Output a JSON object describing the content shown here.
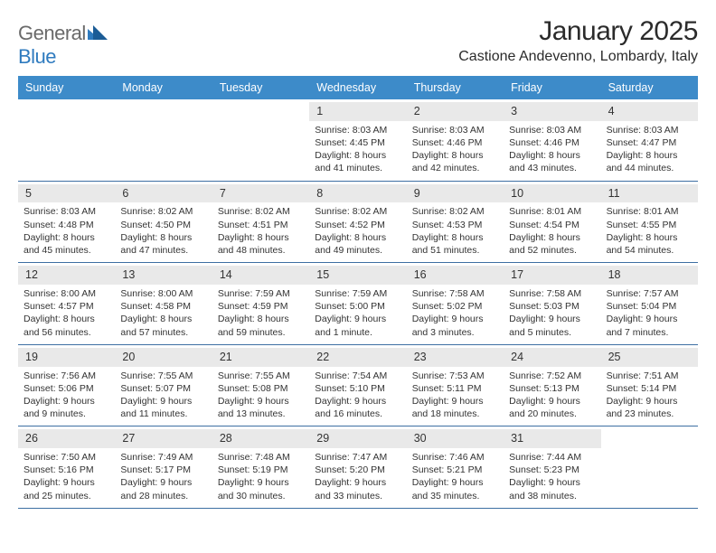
{
  "brand": {
    "name_a": "General",
    "name_b": "Blue"
  },
  "title": "January 2025",
  "location": "Castione Andevenno, Lombardy, Italy",
  "colors": {
    "header_bg": "#3d8bc9",
    "header_text": "#ffffff",
    "row_border": "#3d6fa3",
    "daynum_bg": "#e9e9e9",
    "body_text": "#333333",
    "logo_gray": "#6a6a6a",
    "logo_blue": "#2f7bbf",
    "page_bg": "#ffffff"
  },
  "typography": {
    "title_fontsize": 30,
    "location_fontsize": 16,
    "dow_fontsize": 12.5,
    "daynum_fontsize": 12.5,
    "body_fontsize": 10.5
  },
  "dow": [
    "Sunday",
    "Monday",
    "Tuesday",
    "Wednesday",
    "Thursday",
    "Friday",
    "Saturday"
  ],
  "weeks": [
    [
      {
        "n": "",
        "lines": [
          "",
          "",
          "",
          ""
        ]
      },
      {
        "n": "",
        "lines": [
          "",
          "",
          "",
          ""
        ]
      },
      {
        "n": "",
        "lines": [
          "",
          "",
          "",
          ""
        ]
      },
      {
        "n": "1",
        "lines": [
          "Sunrise: 8:03 AM",
          "Sunset: 4:45 PM",
          "Daylight: 8 hours",
          "and 41 minutes."
        ]
      },
      {
        "n": "2",
        "lines": [
          "Sunrise: 8:03 AM",
          "Sunset: 4:46 PM",
          "Daylight: 8 hours",
          "and 42 minutes."
        ]
      },
      {
        "n": "3",
        "lines": [
          "Sunrise: 8:03 AM",
          "Sunset: 4:46 PM",
          "Daylight: 8 hours",
          "and 43 minutes."
        ]
      },
      {
        "n": "4",
        "lines": [
          "Sunrise: 8:03 AM",
          "Sunset: 4:47 PM",
          "Daylight: 8 hours",
          "and 44 minutes."
        ]
      }
    ],
    [
      {
        "n": "5",
        "lines": [
          "Sunrise: 8:03 AM",
          "Sunset: 4:48 PM",
          "Daylight: 8 hours",
          "and 45 minutes."
        ]
      },
      {
        "n": "6",
        "lines": [
          "Sunrise: 8:02 AM",
          "Sunset: 4:50 PM",
          "Daylight: 8 hours",
          "and 47 minutes."
        ]
      },
      {
        "n": "7",
        "lines": [
          "Sunrise: 8:02 AM",
          "Sunset: 4:51 PM",
          "Daylight: 8 hours",
          "and 48 minutes."
        ]
      },
      {
        "n": "8",
        "lines": [
          "Sunrise: 8:02 AM",
          "Sunset: 4:52 PM",
          "Daylight: 8 hours",
          "and 49 minutes."
        ]
      },
      {
        "n": "9",
        "lines": [
          "Sunrise: 8:02 AM",
          "Sunset: 4:53 PM",
          "Daylight: 8 hours",
          "and 51 minutes."
        ]
      },
      {
        "n": "10",
        "lines": [
          "Sunrise: 8:01 AM",
          "Sunset: 4:54 PM",
          "Daylight: 8 hours",
          "and 52 minutes."
        ]
      },
      {
        "n": "11",
        "lines": [
          "Sunrise: 8:01 AM",
          "Sunset: 4:55 PM",
          "Daylight: 8 hours",
          "and 54 minutes."
        ]
      }
    ],
    [
      {
        "n": "12",
        "lines": [
          "Sunrise: 8:00 AM",
          "Sunset: 4:57 PM",
          "Daylight: 8 hours",
          "and 56 minutes."
        ]
      },
      {
        "n": "13",
        "lines": [
          "Sunrise: 8:00 AM",
          "Sunset: 4:58 PM",
          "Daylight: 8 hours",
          "and 57 minutes."
        ]
      },
      {
        "n": "14",
        "lines": [
          "Sunrise: 7:59 AM",
          "Sunset: 4:59 PM",
          "Daylight: 8 hours",
          "and 59 minutes."
        ]
      },
      {
        "n": "15",
        "lines": [
          "Sunrise: 7:59 AM",
          "Sunset: 5:00 PM",
          "Daylight: 9 hours",
          "and 1 minute."
        ]
      },
      {
        "n": "16",
        "lines": [
          "Sunrise: 7:58 AM",
          "Sunset: 5:02 PM",
          "Daylight: 9 hours",
          "and 3 minutes."
        ]
      },
      {
        "n": "17",
        "lines": [
          "Sunrise: 7:58 AM",
          "Sunset: 5:03 PM",
          "Daylight: 9 hours",
          "and 5 minutes."
        ]
      },
      {
        "n": "18",
        "lines": [
          "Sunrise: 7:57 AM",
          "Sunset: 5:04 PM",
          "Daylight: 9 hours",
          "and 7 minutes."
        ]
      }
    ],
    [
      {
        "n": "19",
        "lines": [
          "Sunrise: 7:56 AM",
          "Sunset: 5:06 PM",
          "Daylight: 9 hours",
          "and 9 minutes."
        ]
      },
      {
        "n": "20",
        "lines": [
          "Sunrise: 7:55 AM",
          "Sunset: 5:07 PM",
          "Daylight: 9 hours",
          "and 11 minutes."
        ]
      },
      {
        "n": "21",
        "lines": [
          "Sunrise: 7:55 AM",
          "Sunset: 5:08 PM",
          "Daylight: 9 hours",
          "and 13 minutes."
        ]
      },
      {
        "n": "22",
        "lines": [
          "Sunrise: 7:54 AM",
          "Sunset: 5:10 PM",
          "Daylight: 9 hours",
          "and 16 minutes."
        ]
      },
      {
        "n": "23",
        "lines": [
          "Sunrise: 7:53 AM",
          "Sunset: 5:11 PM",
          "Daylight: 9 hours",
          "and 18 minutes."
        ]
      },
      {
        "n": "24",
        "lines": [
          "Sunrise: 7:52 AM",
          "Sunset: 5:13 PM",
          "Daylight: 9 hours",
          "and 20 minutes."
        ]
      },
      {
        "n": "25",
        "lines": [
          "Sunrise: 7:51 AM",
          "Sunset: 5:14 PM",
          "Daylight: 9 hours",
          "and 23 minutes."
        ]
      }
    ],
    [
      {
        "n": "26",
        "lines": [
          "Sunrise: 7:50 AM",
          "Sunset: 5:16 PM",
          "Daylight: 9 hours",
          "and 25 minutes."
        ]
      },
      {
        "n": "27",
        "lines": [
          "Sunrise: 7:49 AM",
          "Sunset: 5:17 PM",
          "Daylight: 9 hours",
          "and 28 minutes."
        ]
      },
      {
        "n": "28",
        "lines": [
          "Sunrise: 7:48 AM",
          "Sunset: 5:19 PM",
          "Daylight: 9 hours",
          "and 30 minutes."
        ]
      },
      {
        "n": "29",
        "lines": [
          "Sunrise: 7:47 AM",
          "Sunset: 5:20 PM",
          "Daylight: 9 hours",
          "and 33 minutes."
        ]
      },
      {
        "n": "30",
        "lines": [
          "Sunrise: 7:46 AM",
          "Sunset: 5:21 PM",
          "Daylight: 9 hours",
          "and 35 minutes."
        ]
      },
      {
        "n": "31",
        "lines": [
          "Sunrise: 7:44 AM",
          "Sunset: 5:23 PM",
          "Daylight: 9 hours",
          "and 38 minutes."
        ]
      },
      {
        "n": "",
        "lines": [
          "",
          "",
          "",
          ""
        ]
      }
    ]
  ]
}
